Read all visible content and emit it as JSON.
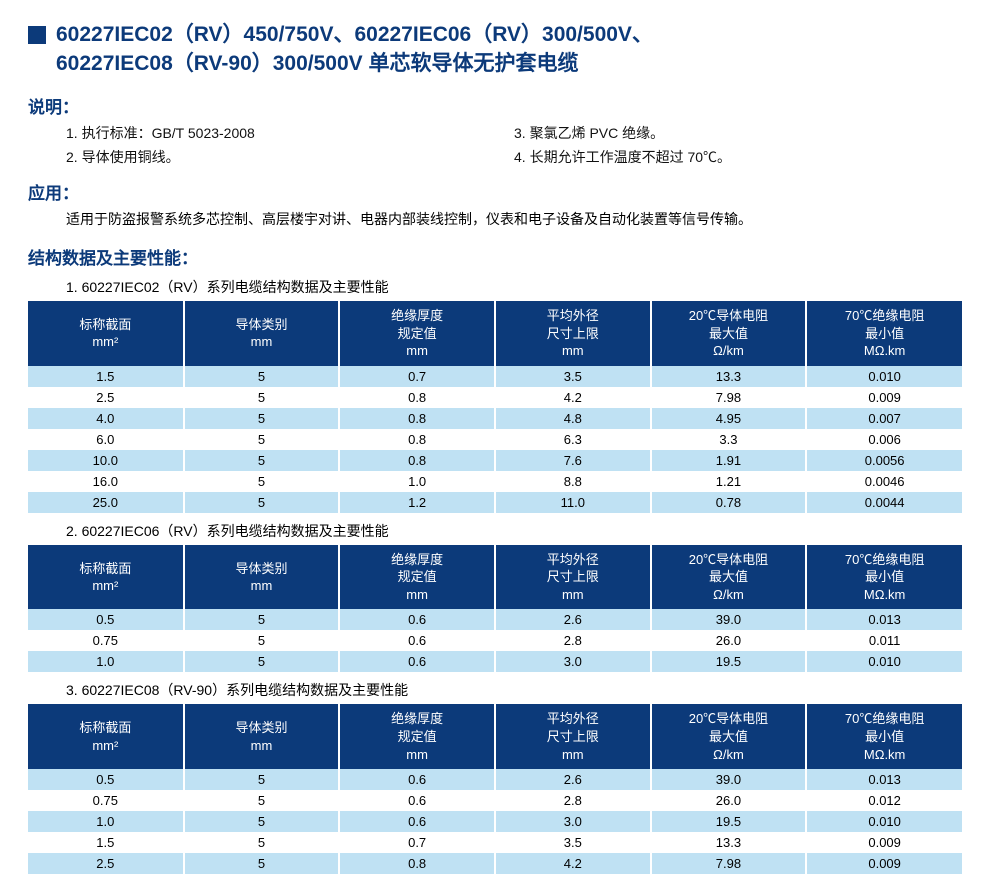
{
  "colors": {
    "brand": "#0c3a7a",
    "header_bg": "#0c3a7a",
    "header_fg": "#ffffff",
    "row_light": "#bfe1f3",
    "row_white": "#ffffff"
  },
  "title": {
    "line1": "60227IEC02（RV）450/750V、60227IEC06（RV）300/500V、",
    "line2": "60227IEC08（RV-90）300/500V 单芯软导体无护套电缆"
  },
  "sections": {
    "desc_label": "说明：",
    "app_label": "应用：",
    "struct_label": "结构数据及主要性能："
  },
  "description": {
    "item1": "1. 执行标准：GB/T 5023-2008",
    "item2": "2. 导体使用铜线。",
    "item3": "3. 聚氯乙烯 PVC 绝缘。",
    "item4": "4. 长期允许工作温度不超过 70℃。"
  },
  "application": "适用于防盗报警系统多芯控制、高层楼宇对讲、电器内部装线控制，仪表和电子设备及自动化装置等信号传输。",
  "table_columns": [
    {
      "label": "标称截面",
      "unit": "mm²"
    },
    {
      "label": "导体类别",
      "unit": "mm"
    },
    {
      "label": "绝缘厚度\n规定值",
      "unit": "mm"
    },
    {
      "label": "平均外径\n尺寸上限",
      "unit": "mm"
    },
    {
      "label": "20℃导体电阻\n最大值",
      "unit": "Ω/km"
    },
    {
      "label": "70℃绝缘电阻\n最小值",
      "unit": "MΩ.km"
    }
  ],
  "tables": [
    {
      "caption": "1. 60227IEC02（RV）系列电缆结构数据及主要性能",
      "rows": [
        [
          "1.5",
          "5",
          "0.7",
          "3.5",
          "13.3",
          "0.010"
        ],
        [
          "2.5",
          "5",
          "0.8",
          "4.2",
          "7.98",
          "0.009"
        ],
        [
          "4.0",
          "5",
          "0.8",
          "4.8",
          "4.95",
          "0.007"
        ],
        [
          "6.0",
          "5",
          "0.8",
          "6.3",
          "3.3",
          "0.006"
        ],
        [
          "10.0",
          "5",
          "0.8",
          "7.6",
          "1.91",
          "0.0056"
        ],
        [
          "16.0",
          "5",
          "1.0",
          "8.8",
          "1.21",
          "0.0046"
        ],
        [
          "25.0",
          "5",
          "1.2",
          "11.0",
          "0.78",
          "0.0044"
        ]
      ]
    },
    {
      "caption": "2. 60227IEC06（RV）系列电缆结构数据及主要性能",
      "rows": [
        [
          "0.5",
          "5",
          "0.6",
          "2.6",
          "39.0",
          "0.013"
        ],
        [
          "0.75",
          "5",
          "0.6",
          "2.8",
          "26.0",
          "0.011"
        ],
        [
          "1.0",
          "5",
          "0.6",
          "3.0",
          "19.5",
          "0.010"
        ]
      ]
    },
    {
      "caption": "3.  60227IEC08（RV-90）系列电缆结构数据及主要性能",
      "rows": [
        [
          "0.5",
          "5",
          "0.6",
          "2.6",
          "39.0",
          "0.013"
        ],
        [
          "0.75",
          "5",
          "0.6",
          "2.8",
          "26.0",
          "0.012"
        ],
        [
          "1.0",
          "5",
          "0.6",
          "3.0",
          "19.5",
          "0.010"
        ],
        [
          "1.5",
          "5",
          "0.7",
          "3.5",
          "13.3",
          "0.009"
        ],
        [
          "2.5",
          "5",
          "0.8",
          "4.2",
          "7.98",
          "0.009"
        ]
      ]
    }
  ]
}
